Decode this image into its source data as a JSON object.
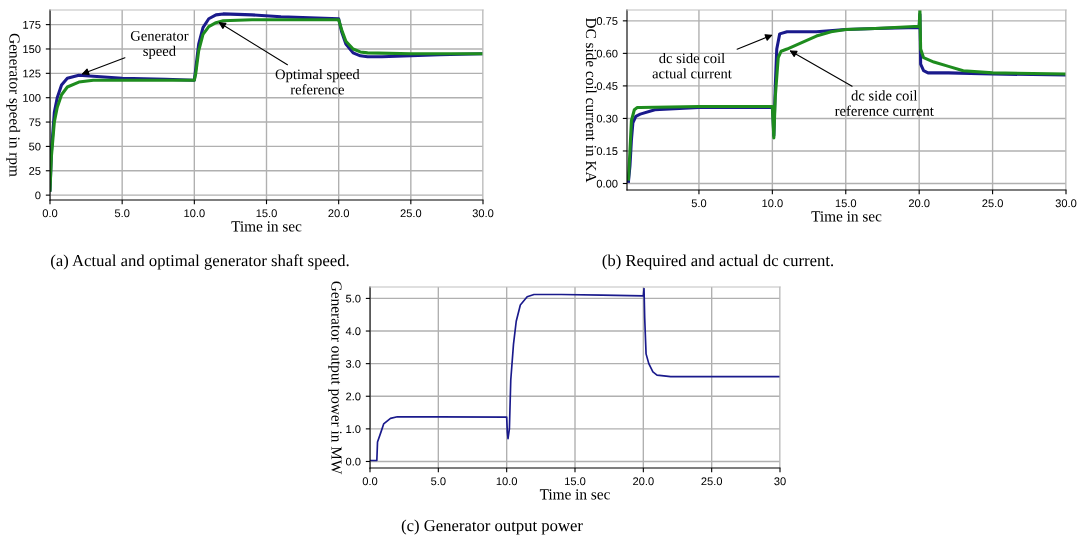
{
  "chart_data": [
    {
      "type": "line",
      "xlabel": "Time in sec",
      "ylabel": "Generator speed in rpm",
      "xlim": [
        0,
        30
      ],
      "ylim": [
        -5,
        190
      ],
      "xticks": [
        {
          "value": 0,
          "label": "0.0"
        },
        {
          "value": 5,
          "label": "5.0"
        },
        {
          "value": 10,
          "label": "10.0"
        },
        {
          "value": 15,
          "label": "15.0"
        },
        {
          "value": 20,
          "label": "20.0"
        },
        {
          "value": 25,
          "label": "25.0"
        },
        {
          "value": 30,
          "label": "30.0"
        }
      ],
      "yticks": [
        0,
        25,
        50,
        75,
        100,
        125,
        150,
        175
      ],
      "grid": true,
      "marker": "none",
      "line_style": "solid",
      "series": [
        {
          "color": "#1a1a8c",
          "x": [
            0,
            0.1,
            0.3,
            0.5,
            0.8,
            1.2,
            2,
            3,
            5,
            8,
            10,
            10.1,
            10.3,
            10.6,
            11,
            11.5,
            12,
            14,
            16,
            18,
            20,
            20.2,
            20.5,
            21,
            21.5,
            22,
            23,
            25,
            27,
            30
          ],
          "values": [
            5,
            45,
            85,
            100,
            113,
            120,
            123,
            122,
            120,
            119,
            118,
            130,
            155,
            172,
            181,
            185,
            186,
            185,
            183,
            182,
            181,
            168,
            155,
            146,
            143,
            142,
            142,
            143,
            144,
            145
          ]
        },
        {
          "color": "#1e8c1e",
          "x": [
            0,
            0.1,
            0.3,
            0.5,
            0.8,
            1.2,
            2,
            3,
            5,
            10,
            10.1,
            10.3,
            10.6,
            11,
            11.5,
            12,
            14,
            20,
            20.2,
            20.5,
            21,
            21.5,
            22,
            25,
            30
          ],
          "values": [
            5,
            40,
            75,
            90,
            103,
            111,
            116,
            118,
            118,
            118,
            125,
            148,
            165,
            173,
            177,
            179,
            180,
            180,
            170,
            158,
            150,
            147,
            146,
            145,
            145
          ]
        }
      ],
      "annotations": [
        {
          "text": "Generator\nspeed",
          "x": 2,
          "y": 123
        },
        {
          "text": "Optimal speed\nreference",
          "x": 11.5,
          "y": 179
        },
        "(a) Actual and optimal generator shaft speed."
      ]
    },
    {
      "type": "line",
      "xlabel": "Time in sec",
      "ylabel": "DC side coil current in KA",
      "xlim": [
        0.1,
        30
      ],
      "ylim": [
        -0.03,
        0.8
      ],
      "xticks": [
        {
          "value": 5,
          "label": "5.0"
        },
        {
          "value": 10,
          "label": "10.0"
        },
        {
          "value": 15,
          "label": "15.0"
        },
        {
          "value": 20,
          "label": "20.0"
        },
        {
          "value": 25,
          "label": "25.0"
        },
        {
          "value": 30,
          "label": "30.0"
        }
      ],
      "yticks": [
        {
          "value": 0,
          "label": "0.00"
        },
        {
          "value": 0.15,
          "label": "0.15"
        },
        {
          "value": 0.3,
          "label": "0.30"
        },
        {
          "value": 0.45,
          "label": "0.45"
        },
        {
          "value": 0.6,
          "label": "0.60"
        },
        {
          "value": 0.75,
          "label": "0.75"
        }
      ],
      "grid": true,
      "marker": "none",
      "line_style": "solid",
      "series": [
        {
          "color": "#1a1a8c",
          "x": [
            0.2,
            0.3,
            0.4,
            0.5,
            0.7,
            1,
            2,
            5,
            10,
            10.05,
            10.1,
            10.2,
            10.3,
            10.5,
            11,
            13,
            15,
            17,
            20,
            20.05,
            20.1,
            20.3,
            20.6,
            21,
            22,
            25,
            30
          ],
          "values": [
            0.01,
            0.08,
            0.2,
            0.28,
            0.31,
            0.32,
            0.34,
            0.35,
            0.35,
            0.3,
            0.22,
            0.45,
            0.62,
            0.69,
            0.7,
            0.7,
            0.71,
            0.715,
            0.72,
            0.78,
            0.55,
            0.52,
            0.51,
            0.51,
            0.51,
            0.505,
            0.5
          ]
        },
        {
          "color": "#1e8c1e",
          "x": [
            0.2,
            0.3,
            0.4,
            0.6,
            0.8,
            1,
            5,
            10,
            10.05,
            10.1,
            10.2,
            10.4,
            10.6,
            11,
            12,
            13,
            14,
            15,
            17,
            20,
            20.05,
            20.1,
            20.3,
            21,
            22,
            23,
            25,
            30
          ],
          "values": [
            0.02,
            0.15,
            0.29,
            0.34,
            0.35,
            0.35,
            0.355,
            0.355,
            0.28,
            0.21,
            0.4,
            0.58,
            0.61,
            0.62,
            0.65,
            0.68,
            0.7,
            0.71,
            0.715,
            0.725,
            0.8,
            0.62,
            0.58,
            0.56,
            0.54,
            0.52,
            0.51,
            0.505
          ]
        }
      ],
      "annotations": [
        {
          "text": "dc side coil\nactual current",
          "x": 10.2,
          "y": 0.69
        },
        {
          "text": "dc side coil\nreference current",
          "x": 11,
          "y": 0.62
        },
        "(b) Required and actual dc current."
      ]
    },
    {
      "type": "line",
      "xlabel": "Time in sec",
      "ylabel": "Generator output power in MW",
      "xlim": [
        0,
        30
      ],
      "ylim": [
        -0.2,
        5.35
      ],
      "xticks": [
        {
          "value": 0,
          "label": "0.0"
        },
        {
          "value": 5,
          "label": "5.0"
        },
        {
          "value": 10,
          "label": "10.0"
        },
        {
          "value": 15,
          "label": "15.0"
        },
        {
          "value": 20,
          "label": "20.0"
        },
        {
          "value": 25,
          "label": "25.0"
        },
        {
          "value": 30,
          "label": "30"
        }
      ],
      "yticks": [
        {
          "value": 0,
          "label": "0.0"
        },
        {
          "value": 1,
          "label": "1.0"
        },
        {
          "value": 2,
          "label": "2.0"
        },
        {
          "value": 3,
          "label": "3.0"
        },
        {
          "value": 4,
          "label": "4.0"
        },
        {
          "value": 5,
          "label": "5.0"
        }
      ],
      "grid": true,
      "marker": "none",
      "line_style": "solid",
      "series": [
        {
          "color": "#1a1a8c",
          "x": [
            0,
            0.5,
            0.55,
            0.8,
            1,
            1.5,
            2,
            5,
            10,
            10.05,
            10.1,
            10.2,
            10.3,
            10.5,
            10.7,
            11,
            11.5,
            12,
            14,
            17,
            20,
            20.05,
            20.1,
            20.2,
            20.4,
            20.7,
            21,
            22,
            30
          ],
          "values": [
            0.03,
            0.03,
            0.6,
            0.9,
            1.15,
            1.32,
            1.37,
            1.37,
            1.36,
            0.9,
            0.7,
            1.0,
            2.5,
            3.6,
            4.3,
            4.8,
            5.05,
            5.12,
            5.12,
            5.1,
            5.08,
            5.3,
            4.4,
            3.3,
            3.0,
            2.75,
            2.65,
            2.6,
            2.6
          ]
        }
      ],
      "annotations": [
        "(c) Generator output power"
      ]
    }
  ]
}
